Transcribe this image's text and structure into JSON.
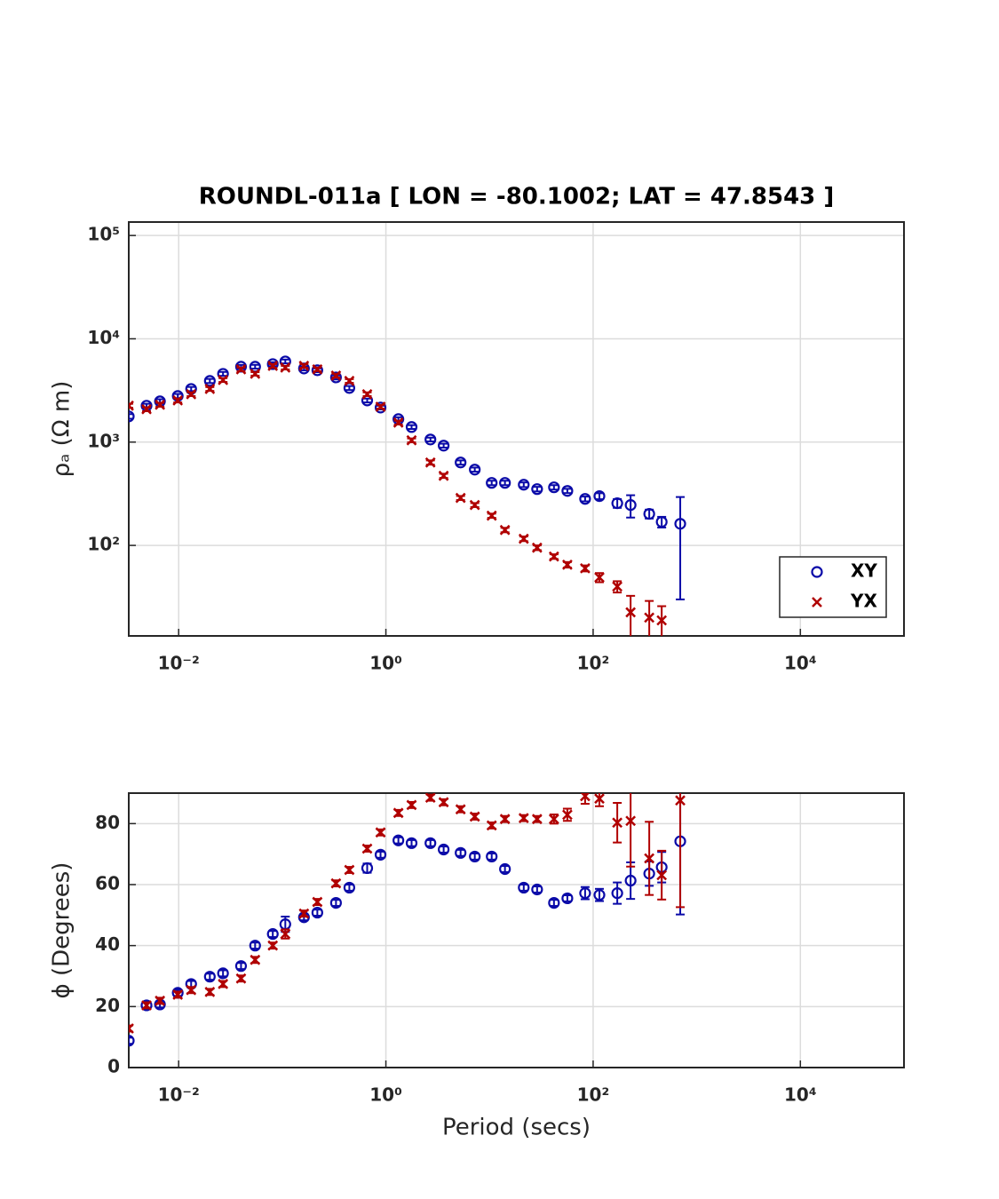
{
  "chart_data": [
    {
      "type": "scatter",
      "title": "ROUNDL-011a [ LON = -80.1002; LAT = 47.8543 ]",
      "ylabel": "ρₐ (Ω m)",
      "xscale": "log",
      "yscale": "log",
      "grid": true,
      "legend": "southeast",
      "xlim": [
        0.0033,
        100000
      ],
      "ylim": [
        13.3,
        135000
      ],
      "xticks": [
        {
          "value": 0.01,
          "label": "10⁻²"
        },
        {
          "value": 1,
          "label": "10⁰"
        },
        {
          "value": 100,
          "label": "10²"
        },
        {
          "value": 10000,
          "label": "10⁴"
        }
      ],
      "yticks": [
        {
          "value": 100,
          "label": "10²"
        },
        {
          "value": 1000,
          "label": "10³"
        },
        {
          "value": 10000,
          "label": "10⁴"
        },
        {
          "value": 100000,
          "label": "10⁵"
        }
      ],
      "x": [
        0.0033,
        0.0049,
        0.0066,
        0.0098,
        0.0132,
        0.02,
        0.0268,
        0.04,
        0.0547,
        0.081,
        0.107,
        0.162,
        0.218,
        0.33,
        0.444,
        0.66,
        0.888,
        1.32,
        1.77,
        2.69,
        3.61,
        5.26,
        7.21,
        10.5,
        14.1,
        21.4,
        28.8,
        41.9,
        56.4,
        83.7,
        115,
        171,
        230,
        348,
        459,
        693
      ],
      "series": [
        {
          "name": "XY",
          "marker": "o",
          "color": "#0a0aa8",
          "values": [
            1775,
            2250,
            2480,
            2795,
            3270,
            3910,
            4580,
            5370,
            5370,
            5690,
            6040,
            5160,
            4960,
            4230,
            3340,
            2530,
            2160,
            1670,
            1400,
            1060,
            925,
            635,
            542,
            403,
            403,
            387,
            351,
            365,
            337,
            282,
            300,
            256,
            246,
            202,
            169,
            162
          ],
          "errors": [
            90,
            100,
            120,
            130,
            150,
            180,
            200,
            220,
            230,
            250,
            260,
            220,
            210,
            190,
            150,
            110,
            90,
            70,
            60,
            45,
            40,
            30,
            25,
            20,
            20,
            20,
            18,
            18,
            16,
            15,
            20,
            25,
            60,
            20,
            20,
            132
          ]
        },
        {
          "name": "YX",
          "marker": "x",
          "color": "#b00000",
          "values": [
            2250,
            2080,
            2300,
            2530,
            2910,
            3270,
            3990,
            5060,
            4580,
            5470,
            5260,
            5470,
            5060,
            4400,
            3910,
            2910,
            2200,
            1545,
            1040,
            635,
            472,
            288,
            246,
            194,
            141,
            116,
            95,
            78,
            65,
            60,
            49,
            40,
            22.5,
            20,
            18.8,
            null
          ],
          "errors": [
            100,
            90,
            100,
            110,
            120,
            140,
            170,
            200,
            180,
            220,
            210,
            220,
            200,
            180,
            160,
            120,
            90,
            65,
            45,
            30,
            22,
            13,
            11,
            9,
            7,
            6,
            5,
            4,
            4,
            4,
            5,
            5,
            10,
            9,
            7,
            null
          ]
        }
      ]
    },
    {
      "type": "scatter",
      "xlabel": "Period (secs)",
      "ylabel": "ϕ (Degrees)",
      "xscale": "log",
      "yscale": "linear",
      "grid": true,
      "xlim": [
        0.0033,
        100000
      ],
      "ylim": [
        0,
        90
      ],
      "xticks": [
        {
          "value": 0.01,
          "label": "10⁻²"
        },
        {
          "value": 1,
          "label": "10⁰"
        },
        {
          "value": 100,
          "label": "10²"
        },
        {
          "value": 10000,
          "label": "10⁴"
        }
      ],
      "yticks": [
        0,
        20,
        40,
        60,
        80
      ],
      "x": [
        0.0033,
        0.0049,
        0.0066,
        0.0098,
        0.0132,
        0.02,
        0.0268,
        0.04,
        0.0547,
        0.081,
        0.107,
        0.162,
        0.218,
        0.33,
        0.444,
        0.66,
        0.888,
        1.32,
        1.77,
        2.69,
        3.61,
        5.26,
        7.21,
        10.5,
        14.1,
        21.4,
        28.8,
        41.9,
        56.4,
        83.7,
        115,
        171,
        230,
        348,
        459,
        693
      ],
      "series": [
        {
          "name": "XY",
          "marker": "o",
          "color": "#0a0aa8",
          "values": [
            8.8,
            20.4,
            20.7,
            24.5,
            27.4,
            29.8,
            30.9,
            33.3,
            40,
            43.8,
            47,
            49.3,
            50.8,
            54,
            59,
            65.4,
            69.8,
            74.5,
            73.6,
            73.6,
            71.5,
            70.4,
            69.2,
            69.2,
            65.1,
            59,
            58.4,
            54,
            55.5,
            57.2,
            56.6,
            57.2,
            61.3,
            63.6,
            65.7,
            74.2
          ],
          "errors": [
            1,
            1,
            1,
            1,
            1,
            1,
            1,
            1,
            1,
            1,
            2.5,
            1,
            1,
            1,
            1,
            1.5,
            1,
            1,
            1,
            1,
            1,
            1,
            1,
            1,
            1,
            1,
            1,
            1,
            1,
            2,
            2,
            3.5,
            6,
            4,
            5,
            24
          ]
        },
        {
          "name": "YX",
          "marker": "x",
          "color": "#b00000",
          "values": [
            12.8,
            20.4,
            21.9,
            23.9,
            25.4,
            24.8,
            27.4,
            29.2,
            35.3,
            40,
            43.8,
            50.5,
            54.3,
            60.4,
            64.8,
            71.8,
            77.1,
            83.5,
            86.1,
            88.5,
            87,
            84.7,
            82.3,
            79.4,
            81.5,
            81.8,
            81.5,
            81.5,
            82.9,
            89,
            88.2,
            80.3,
            80.9,
            68.6,
            63.1,
            87.6
          ],
          "errors": [
            1,
            1,
            1,
            1,
            1,
            1,
            1,
            1,
            1,
            1,
            1.5,
            1,
            1,
            1,
            1,
            1,
            1,
            1,
            1,
            1,
            1,
            1,
            1,
            1,
            1,
            1,
            1,
            1.5,
            2,
            2.5,
            2.5,
            6.5,
            15,
            12,
            8,
            35
          ]
        }
      ]
    }
  ]
}
